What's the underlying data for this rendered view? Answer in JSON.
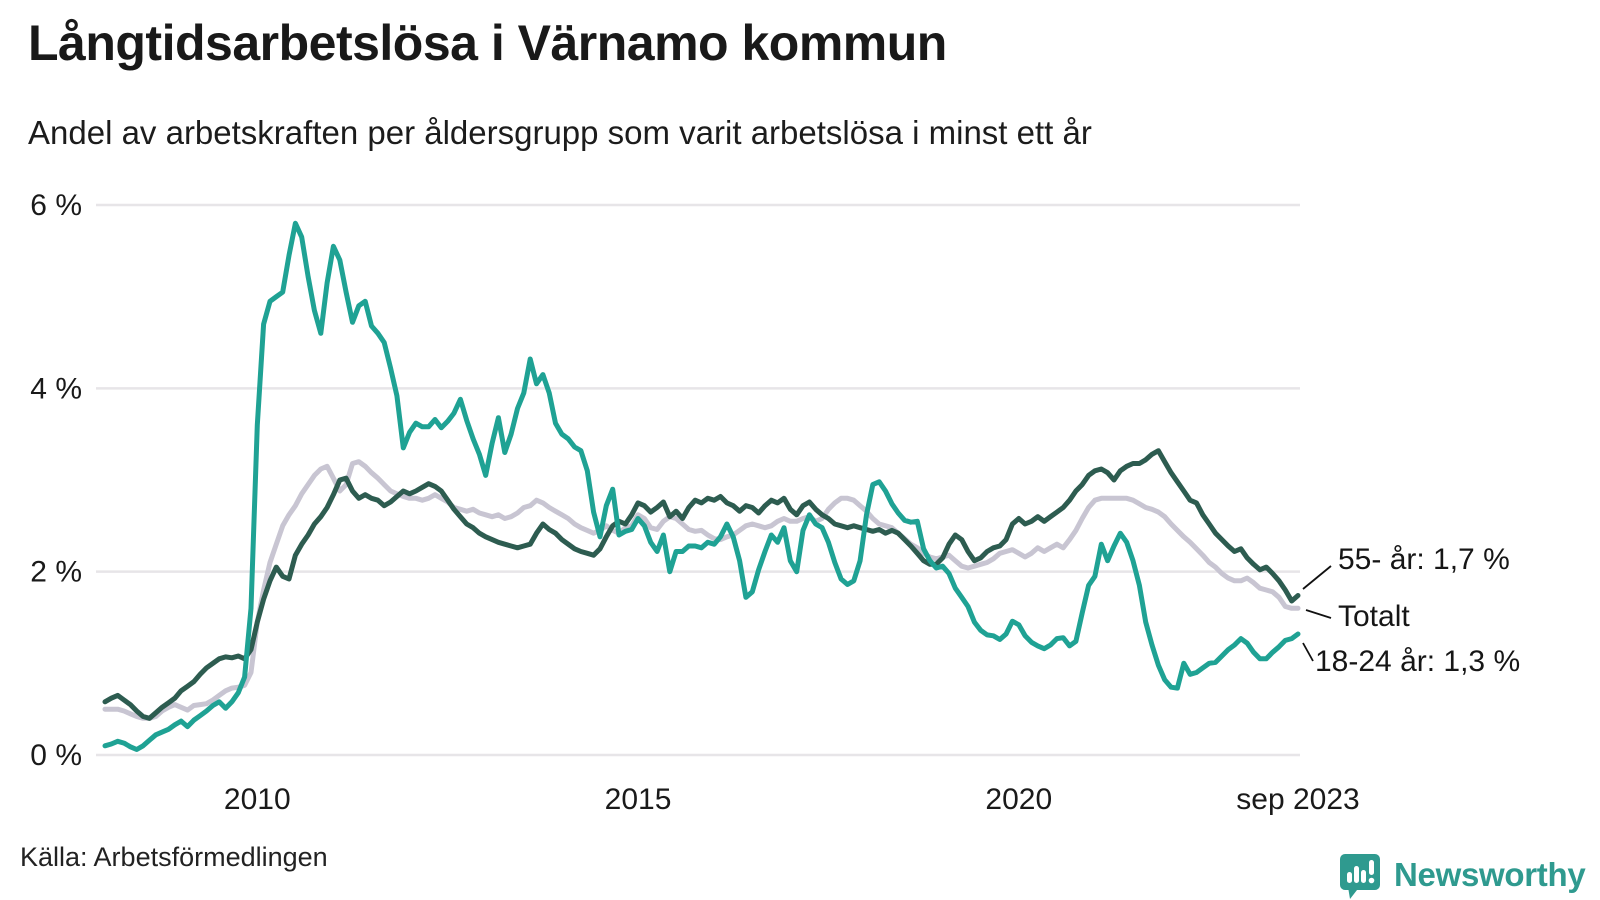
{
  "header": {
    "title": "Långtidsarbetslösa i Värnamo kommun",
    "subtitle": "Andel av arbetskraften per åldersgrupp som varit arbetslösa i minst ett år"
  },
  "footer": {
    "source": "Källa: Arbetsförmedlingen",
    "brand": "Newsworthy",
    "brand_icon": "speech-bubble-bar-chart"
  },
  "colors": {
    "teal": "#1fa294",
    "dark_green": "#2d5c50",
    "gray": "#c8c5d2",
    "grid": "#e7e5e8",
    "text": "#1a1a1a",
    "annotation_line": "#111111",
    "brand": "#2f9a8f",
    "background": "#ffffff"
  },
  "chart_data": {
    "type": "line",
    "title": "Långtidsarbetslösa i Värnamo kommun",
    "subtitle": "Andel av arbetskraften per åldersgrupp som varit arbetslösa i minst ett år",
    "x_start": "2008-01",
    "x_end": "2023-09",
    "frequency": "monthly",
    "n_points": 189,
    "unit": "%",
    "ylim": [
      0,
      6.2
    ],
    "grid": "horizontal",
    "legend_position": "end-of-line-labels",
    "yticks": [
      {
        "value": 0,
        "label": "0 %"
      },
      {
        "value": 2,
        "label": "2 %"
      },
      {
        "value": 4,
        "label": "4 %"
      },
      {
        "value": 6,
        "label": "6 %"
      }
    ],
    "xticks": [
      {
        "month_index": 24,
        "label": "2010"
      },
      {
        "month_index": 84,
        "label": "2015"
      },
      {
        "month_index": 144,
        "label": "2020"
      },
      {
        "month_index": 188,
        "label": "sep 2023"
      }
    ],
    "series": [
      {
        "name": "Totalt",
        "end_label": "Totalt",
        "last_value": 1.6,
        "color": "#c8c5d2",
        "values": [
          0.5,
          0.5,
          0.5,
          0.48,
          0.45,
          0.42,
          0.4,
          0.4,
          0.42,
          0.48,
          0.52,
          0.55,
          0.52,
          0.49,
          0.54,
          0.55,
          0.56,
          0.6,
          0.65,
          0.7,
          0.73,
          0.74,
          0.76,
          0.9,
          1.45,
          1.8,
          2.1,
          2.3,
          2.5,
          2.62,
          2.72,
          2.85,
          2.95,
          3.05,
          3.12,
          3.15,
          3.02,
          2.88,
          2.95,
          3.18,
          3.2,
          3.15,
          3.08,
          3.02,
          2.95,
          2.88,
          2.85,
          2.82,
          2.8,
          2.8,
          2.78,
          2.8,
          2.84,
          2.8,
          2.76,
          2.7,
          2.68,
          2.66,
          2.68,
          2.64,
          2.62,
          2.6,
          2.62,
          2.58,
          2.6,
          2.64,
          2.7,
          2.72,
          2.78,
          2.75,
          2.7,
          2.66,
          2.62,
          2.58,
          2.52,
          2.48,
          2.45,
          2.42,
          2.45,
          2.5,
          2.45,
          2.42,
          2.48,
          2.5,
          2.62,
          2.58,
          2.48,
          2.46,
          2.55,
          2.6,
          2.58,
          2.52,
          2.46,
          2.44,
          2.45,
          2.4,
          2.36,
          2.35,
          2.38,
          2.4,
          2.45,
          2.5,
          2.52,
          2.5,
          2.48,
          2.5,
          2.55,
          2.58,
          2.55,
          2.55,
          2.58,
          2.6,
          2.55,
          2.58,
          2.68,
          2.75,
          2.8,
          2.8,
          2.78,
          2.72,
          2.66,
          2.58,
          2.52,
          2.5,
          2.48,
          2.42,
          2.36,
          2.3,
          2.26,
          2.2,
          2.16,
          2.14,
          2.16,
          2.18,
          2.12,
          2.06,
          2.04,
          2.06,
          2.08,
          2.1,
          2.14,
          2.2,
          2.22,
          2.24,
          2.2,
          2.16,
          2.2,
          2.26,
          2.22,
          2.26,
          2.3,
          2.26,
          2.35,
          2.45,
          2.58,
          2.7,
          2.78,
          2.8,
          2.8,
          2.8,
          2.8,
          2.8,
          2.78,
          2.74,
          2.7,
          2.68,
          2.65,
          2.6,
          2.52,
          2.45,
          2.38,
          2.32,
          2.25,
          2.18,
          2.1,
          2.05,
          1.98,
          1.93,
          1.9,
          1.9,
          1.93,
          1.88,
          1.82,
          1.8,
          1.78,
          1.72,
          1.62,
          1.6,
          1.6
        ]
      },
      {
        "name": "55- år",
        "end_label": "55- år: 1,7 %",
        "last_value": 1.7,
        "color": "#2d5c50",
        "values": [
          0.58,
          0.62,
          0.65,
          0.6,
          0.55,
          0.48,
          0.42,
          0.4,
          0.46,
          0.52,
          0.57,
          0.62,
          0.7,
          0.75,
          0.8,
          0.88,
          0.95,
          1.0,
          1.05,
          1.07,
          1.06,
          1.08,
          1.05,
          1.15,
          1.45,
          1.7,
          1.9,
          2.05,
          1.95,
          1.92,
          2.18,
          2.3,
          2.4,
          2.52,
          2.6,
          2.7,
          2.84,
          3.0,
          3.02,
          2.88,
          2.8,
          2.84,
          2.8,
          2.78,
          2.72,
          2.76,
          2.82,
          2.88,
          2.85,
          2.88,
          2.92,
          2.96,
          2.93,
          2.88,
          2.78,
          2.68,
          2.6,
          2.52,
          2.48,
          2.42,
          2.38,
          2.35,
          2.32,
          2.3,
          2.28,
          2.26,
          2.28,
          2.3,
          2.42,
          2.52,
          2.46,
          2.42,
          2.35,
          2.3,
          2.25,
          2.22,
          2.2,
          2.18,
          2.25,
          2.38,
          2.5,
          2.55,
          2.52,
          2.62,
          2.75,
          2.72,
          2.65,
          2.7,
          2.76,
          2.6,
          2.66,
          2.58,
          2.7,
          2.78,
          2.75,
          2.8,
          2.78,
          2.82,
          2.75,
          2.72,
          2.66,
          2.72,
          2.7,
          2.64,
          2.72,
          2.78,
          2.75,
          2.8,
          2.68,
          2.62,
          2.72,
          2.76,
          2.68,
          2.62,
          2.58,
          2.52,
          2.5,
          2.48,
          2.5,
          2.48,
          2.46,
          2.44,
          2.46,
          2.42,
          2.45,
          2.42,
          2.35,
          2.28,
          2.2,
          2.12,
          2.08,
          2.08,
          2.15,
          2.3,
          2.4,
          2.35,
          2.22,
          2.12,
          2.15,
          2.22,
          2.26,
          2.28,
          2.35,
          2.52,
          2.58,
          2.52,
          2.55,
          2.6,
          2.55,
          2.6,
          2.65,
          2.7,
          2.78,
          2.88,
          2.95,
          3.05,
          3.1,
          3.12,
          3.08,
          3.0,
          3.1,
          3.15,
          3.18,
          3.18,
          3.22,
          3.28,
          3.32,
          3.2,
          3.08,
          2.98,
          2.88,
          2.78,
          2.75,
          2.62,
          2.52,
          2.42,
          2.35,
          2.28,
          2.22,
          2.25,
          2.15,
          2.08,
          2.02,
          2.05,
          1.98,
          1.9,
          1.8,
          1.68,
          1.74
        ]
      },
      {
        "name": "18-24 år",
        "end_label": "18-24 år: 1,3 %",
        "last_value": 1.3,
        "color": "#1fa294",
        "values": [
          0.1,
          0.12,
          0.15,
          0.13,
          0.09,
          0.06,
          0.1,
          0.16,
          0.22,
          0.25,
          0.28,
          0.33,
          0.37,
          0.31,
          0.38,
          0.43,
          0.48,
          0.54,
          0.58,
          0.51,
          0.58,
          0.68,
          0.85,
          1.6,
          3.6,
          4.7,
          4.95,
          5.0,
          5.05,
          5.45,
          5.8,
          5.65,
          5.22,
          4.85,
          4.6,
          5.15,
          5.55,
          5.4,
          5.05,
          4.72,
          4.9,
          4.95,
          4.68,
          4.6,
          4.5,
          4.22,
          3.92,
          3.35,
          3.52,
          3.62,
          3.58,
          3.58,
          3.66,
          3.57,
          3.64,
          3.73,
          3.88,
          3.65,
          3.45,
          3.28,
          3.05,
          3.4,
          3.68,
          3.3,
          3.5,
          3.78,
          3.95,
          4.32,
          4.05,
          4.15,
          3.95,
          3.62,
          3.5,
          3.45,
          3.36,
          3.32,
          3.1,
          2.65,
          2.38,
          2.72,
          2.9,
          2.4,
          2.44,
          2.46,
          2.58,
          2.5,
          2.32,
          2.22,
          2.4,
          2.0,
          2.22,
          2.22,
          2.28,
          2.28,
          2.26,
          2.32,
          2.3,
          2.38,
          2.52,
          2.38,
          2.12,
          1.72,
          1.78,
          2.02,
          2.22,
          2.4,
          2.32,
          2.48,
          2.12,
          2.0,
          2.45,
          2.62,
          2.52,
          2.48,
          2.32,
          2.1,
          1.92,
          1.86,
          1.9,
          2.12,
          2.62,
          2.95,
          2.98,
          2.88,
          2.74,
          2.64,
          2.56,
          2.54,
          2.55,
          2.25,
          2.12,
          2.04,
          2.06,
          1.98,
          1.82,
          1.72,
          1.62,
          1.45,
          1.36,
          1.31,
          1.3,
          1.26,
          1.32,
          1.46,
          1.42,
          1.3,
          1.23,
          1.19,
          1.16,
          1.2,
          1.27,
          1.28,
          1.19,
          1.24,
          1.55,
          1.85,
          1.95,
          2.3,
          2.12,
          2.28,
          2.42,
          2.32,
          2.12,
          1.85,
          1.45,
          1.2,
          0.98,
          0.82,
          0.74,
          0.73,
          1.0,
          0.88,
          0.9,
          0.95,
          1.0,
          1.01,
          1.08,
          1.15,
          1.2,
          1.27,
          1.22,
          1.12,
          1.05,
          1.05,
          1.12,
          1.18,
          1.25,
          1.27,
          1.32
        ]
      }
    ]
  }
}
